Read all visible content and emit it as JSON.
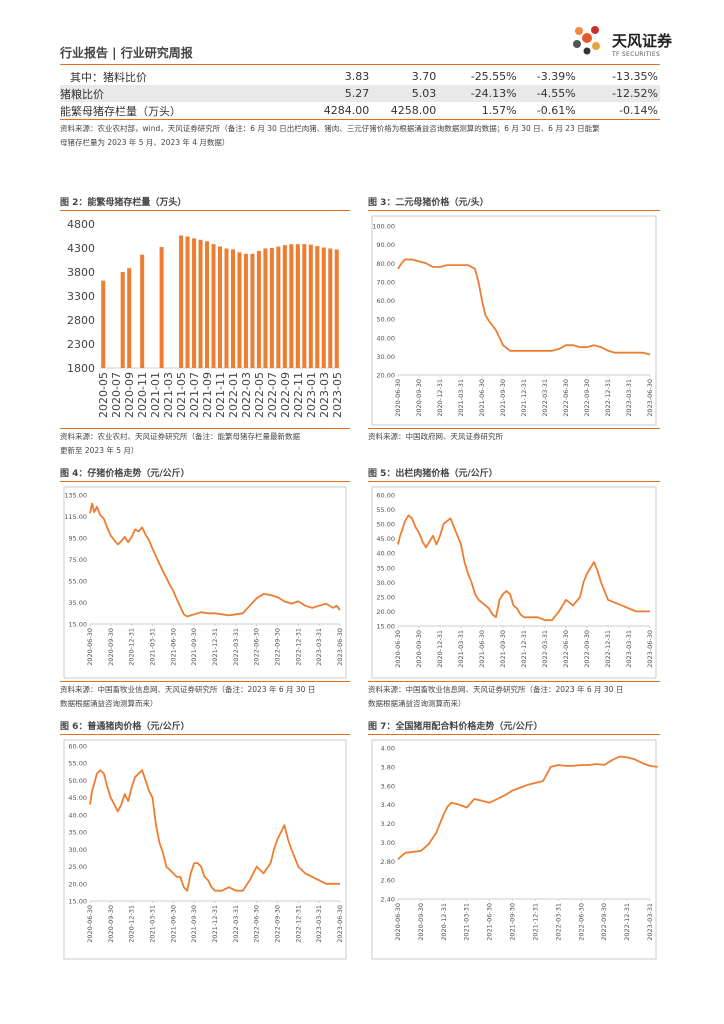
{
  "header": {
    "title": "行业报告 | 行业研究周报",
    "logo_cn": "天风证券",
    "logo_en": "TF SECURITIES"
  },
  "table": {
    "rows": [
      {
        "label": "其中：猪料比价",
        "v1": "3.83",
        "v2": "3.70",
        "v3": "-25.55%",
        "v4": "-3.39%",
        "v5": "-13.35%"
      },
      {
        "label": "猪粮比价",
        "v1": "5.27",
        "v2": "5.03",
        "v3": "-24.13%",
        "v4": "-4.55%",
        "v5": "-12.52%"
      },
      {
        "label": "能繁母猪存栏量（万头）",
        "v1": "4284.00",
        "v2": "4258.00",
        "v3": "1.57%",
        "v4": "-0.61%",
        "v5": "-0.14%"
      }
    ],
    "source_line1": "资料来源：农业农村部，wind，天风证券研究所（备注：6 月 30 日出栏肉猪、猪肉、三元仔猪价格为根据涌益咨询数据测算的数据；6 月 30 日、6 月 23 日能繁",
    "source_line2": "母猪存栏量为 2023 年 5 月、2023 年 4 月数据）"
  },
  "figures": {
    "fig2": {
      "title": "图 2：能繁母猪存栏量（万头）",
      "source1": "资料来源：农业农村、天风证券研究所（备注：能繁母猪存栏量最新数据",
      "source2": "更新至 2023 年 5 月）"
    },
    "fig3": {
      "title": "图 3：二元母猪价格（元/头）",
      "source1": "资料来源：中国政府网、天风证券研究所"
    },
    "fig4": {
      "title": "图 4：仔猪价格走势（元/公斤）",
      "source1": "资料来源：中国畜牧业信息网、天风证券研究所（备注：2023 年 6 月 30 日",
      "source2": "数据根据涌益咨询测算而来）"
    },
    "fig5": {
      "title": "图 5：出栏肉猪价格（元/公斤）",
      "source1": "资料来源：中国畜牧业信息网、天风证券研究所（备注：2023 年 6 月 30 日",
      "source2": "数据根据涌益咨询测算而来）"
    },
    "fig6": {
      "title": "图 6：普通猪肉价格（元/公斤）"
    },
    "fig7": {
      "title": "图 7：全国猪用配合料价格走势（元/公斤）"
    }
  },
  "colors": {
    "accent": "#e07020",
    "series": "#ed7d31"
  },
  "chart_data": [
    {
      "id": "fig2",
      "type": "bar",
      "title": "能繁母猪存栏量（万头）",
      "ylim": [
        1800,
        4800
      ],
      "yticks": [
        1800,
        2300,
        2800,
        3300,
        3800,
        4300,
        4800
      ],
      "xticks": [
        "2020-05",
        "2020-07",
        "2020-09",
        "2020-11",
        "2021-01",
        "2021-03",
        "2021-05",
        "2021-07",
        "2021-09",
        "2021-11",
        "2022-01",
        "2022-03",
        "2022-05",
        "2022-07",
        "2022-09",
        "2022-11",
        "2023-01",
        "2023-03",
        "2023-05"
      ],
      "categories": [
        "2020-05",
        "2020-06",
        "2020-07",
        "2020-08",
        "2020-09",
        "2020-10",
        "2020-11",
        "2020-12",
        "2021-01",
        "2021-02",
        "2021-03",
        "2021-04",
        "2021-05",
        "2021-06",
        "2021-07",
        "2021-08",
        "2021-09",
        "2021-10",
        "2021-11",
        "2021-12",
        "2022-01",
        "2022-02",
        "2022-03",
        "2022-04",
        "2022-05",
        "2022-06",
        "2022-07",
        "2022-08",
        "2022-09",
        "2022-10",
        "2022-11",
        "2022-12",
        "2023-01",
        "2023-02",
        "2023-03",
        "2023-04",
        "2023-05"
      ],
      "values": [
        3620,
        null,
        null,
        3800,
        3880,
        null,
        4160,
        null,
        null,
        4320,
        null,
        null,
        4560,
        4540,
        4500,
        4470,
        4440,
        4380,
        4330,
        4290,
        4270,
        4210,
        4180,
        4180,
        4240,
        4290,
        4300,
        4330,
        4360,
        4380,
        4380,
        4380,
        4370,
        4340,
        4310,
        4290,
        4270
      ]
    },
    {
      "id": "fig3",
      "type": "line",
      "title": "二元母猪价格（元/头）",
      "ylim": [
        20,
        100
      ],
      "yticks": [
        20,
        30,
        40,
        50,
        60,
        70,
        80,
        90,
        100
      ],
      "ytick_labels": [
        "20.00",
        "30.00",
        "40.00",
        "50.00",
        "60.00",
        "70.00",
        "80.00",
        "90.00",
        "100.00"
      ],
      "xlim": [
        0,
        36
      ],
      "xticks": [
        {
          "x": 0,
          "label": "2020-06-30"
        },
        {
          "x": 3,
          "label": "2020-09-30"
        },
        {
          "x": 6,
          "label": "2020-12-31"
        },
        {
          "x": 9,
          "label": "2021-03-31"
        },
        {
          "x": 12,
          "label": "2021-06-30"
        },
        {
          "x": 15,
          "label": "2021-09-30"
        },
        {
          "x": 18,
          "label": "2021-12-31"
        },
        {
          "x": 21,
          "label": "2022-03-31"
        },
        {
          "x": 24,
          "label": "2022-06-30"
        },
        {
          "x": 27,
          "label": "2022-09-30"
        },
        {
          "x": 30,
          "label": "2022-12-31"
        },
        {
          "x": 33,
          "label": "2023-03-31"
        },
        {
          "x": 36,
          "label": "2023-06-30"
        }
      ],
      "x": [
        0,
        0.5,
        1,
        2,
        3,
        4,
        5,
        6,
        7,
        8,
        9,
        10,
        11,
        11.5,
        12,
        12.5,
        13,
        14,
        15,
        16,
        17,
        18,
        19,
        20,
        21,
        22,
        23,
        24,
        25,
        26,
        27,
        28,
        29,
        30,
        31,
        32,
        33,
        34,
        35,
        36
      ],
      "y": [
        77,
        80,
        82,
        82,
        81,
        80,
        78,
        78,
        79,
        79,
        79,
        79,
        77,
        70,
        60,
        52,
        49,
        44,
        36,
        33,
        33,
        33,
        33,
        33,
        33,
        33,
        34,
        36,
        36,
        35,
        35,
        36,
        35,
        33,
        32,
        32,
        32,
        32,
        32,
        31
      ]
    },
    {
      "id": "fig4",
      "type": "line",
      "title": "仔猪价格走势（元/公斤）",
      "ylim": [
        15,
        135
      ],
      "yticks": [
        15,
        35,
        55,
        75,
        95,
        115,
        135
      ],
      "ytick_labels": [
        "15.00",
        "35.00",
        "55.00",
        "75.00",
        "95.00",
        "115.00",
        "135.00"
      ],
      "xlim": [
        0,
        36
      ],
      "xticks": [
        {
          "x": 0,
          "label": "2020-06-30"
        },
        {
          "x": 3,
          "label": "2020-09-30"
        },
        {
          "x": 6,
          "label": "2020-12-31"
        },
        {
          "x": 9,
          "label": "2021-03-31"
        },
        {
          "x": 12,
          "label": "2021-06-30"
        },
        {
          "x": 15,
          "label": "2021-09-30"
        },
        {
          "x": 18,
          "label": "2021-12-31"
        },
        {
          "x": 21,
          "label": "2022-03-31"
        },
        {
          "x": 24,
          "label": "2022-06-30"
        },
        {
          "x": 27,
          "label": "2022-09-30"
        },
        {
          "x": 30,
          "label": "2022-12-31"
        },
        {
          "x": 33,
          "label": "2023-03-31"
        },
        {
          "x": 36,
          "label": "2023-06-30"
        }
      ],
      "x": [
        0,
        0.3,
        0.6,
        1,
        1.5,
        2,
        2.5,
        3,
        3.5,
        4,
        4.5,
        5,
        5.5,
        6,
        6.5,
        7,
        7.5,
        8,
        8.5,
        9,
        9.5,
        10,
        10.5,
        11,
        11.5,
        12,
        12.5,
        13,
        13.5,
        14,
        15,
        16,
        17,
        18,
        19,
        20,
        21,
        22,
        23,
        24,
        25,
        26,
        27,
        28,
        29,
        30,
        31,
        32,
        33,
        34,
        35,
        35.5,
        36
      ],
      "y": [
        118,
        127,
        119,
        124,
        116,
        113,
        104,
        97,
        93,
        89,
        92,
        96,
        91,
        96,
        103,
        101,
        105,
        98,
        93,
        85,
        78,
        71,
        64,
        58,
        51,
        46,
        38,
        31,
        24,
        22,
        24,
        26,
        25,
        25,
        24,
        23,
        24,
        25,
        32,
        39,
        43,
        42,
        40,
        36,
        34,
        36,
        32,
        30,
        32,
        34,
        30,
        32,
        28
      ]
    },
    {
      "id": "fig5",
      "type": "line",
      "title": "出栏肉猪价格（元/公斤）",
      "ylim": [
        15,
        60
      ],
      "yticks": [
        15,
        20,
        25,
        30,
        35,
        40,
        45,
        50,
        55,
        60
      ],
      "ytick_labels": [
        "15.00",
        "20.00",
        "25.00",
        "30.00",
        "35.00",
        "40.00",
        "45.00",
        "50.00",
        "55.00",
        "60.00"
      ],
      "xlim": [
        0,
        36
      ],
      "xticks": [
        {
          "x": 0,
          "label": "2020-06-30"
        },
        {
          "x": 3,
          "label": "2020-09-30"
        },
        {
          "x": 6,
          "label": "2020-12-31"
        },
        {
          "x": 9,
          "label": "2021-03-31"
        },
        {
          "x": 12,
          "label": "2021-06-30"
        },
        {
          "x": 15,
          "label": "2021-09-30"
        },
        {
          "x": 18,
          "label": "2021-12-31"
        },
        {
          "x": 21,
          "label": "2022-03-31"
        },
        {
          "x": 24,
          "label": "2022-06-30"
        },
        {
          "x": 27,
          "label": "2022-09-30"
        },
        {
          "x": 30,
          "label": "2022-12-31"
        },
        {
          "x": 33,
          "label": "2023-03-31"
        },
        {
          "x": 36,
          "label": "2023-06-30"
        }
      ],
      "x": [
        0,
        0.3,
        0.6,
        1,
        1.5,
        2,
        2.5,
        3,
        3.5,
        4,
        4.5,
        5,
        5.5,
        6,
        6.5,
        7,
        7.5,
        8,
        8.5,
        9,
        9.5,
        10,
        10.5,
        11,
        11.5,
        12,
        12.5,
        13,
        13.5,
        14,
        14.5,
        15,
        15.5,
        16,
        16.5,
        17,
        17.5,
        18,
        19,
        20,
        21,
        22,
        23,
        24,
        25,
        26,
        26.5,
        27,
        27.5,
        28,
        28.5,
        29,
        30,
        31,
        32,
        33,
        34,
        35,
        36
      ],
      "y": [
        43,
        46,
        48,
        51,
        53,
        52,
        49,
        47,
        44,
        42,
        44,
        46,
        43,
        46,
        50,
        51,
        52,
        49,
        46,
        43,
        37,
        33,
        30,
        26,
        24,
        23,
        22,
        21,
        19,
        18,
        24,
        26,
        27,
        26,
        22,
        21,
        19,
        18,
        18,
        18,
        17,
        17,
        20,
        24,
        22,
        25,
        30,
        33,
        35,
        37,
        34,
        30,
        24,
        23,
        22,
        21,
        20,
        20,
        20
      ]
    },
    {
      "id": "fig6",
      "type": "line",
      "title": "普通猪肉价格（元/公斤）",
      "ylim": [
        15,
        60
      ],
      "yticks": [
        15,
        20,
        25,
        30,
        35,
        40,
        45,
        50,
        55,
        60
      ],
      "ytick_labels": [
        "15.00",
        "20.00",
        "25.00",
        "30.00",
        "35.00",
        "40.00",
        "45.00",
        "50.00",
        "55.00",
        "60.00"
      ],
      "xlim": [
        0,
        36
      ],
      "xticks": [
        {
          "x": 0,
          "label": "2020-06-30"
        },
        {
          "x": 3,
          "label": "2020-09-30"
        },
        {
          "x": 6,
          "label": "2020-12-31"
        },
        {
          "x": 9,
          "label": "2021-03-31"
        },
        {
          "x": 12,
          "label": "2021-06-30"
        },
        {
          "x": 15,
          "label": "2021-09-30"
        },
        {
          "x": 18,
          "label": "2021-12-31"
        },
        {
          "x": 21,
          "label": "2022-03-31"
        },
        {
          "x": 24,
          "label": "2022-06-30"
        },
        {
          "x": 27,
          "label": "2022-09-30"
        },
        {
          "x": 30,
          "label": "2022-12-31"
        },
        {
          "x": 33,
          "label": "2023-03-31"
        },
        {
          "x": 36,
          "label": "2023-06-30"
        }
      ],
      "x": [
        0,
        0.3,
        0.6,
        1,
        1.5,
        2,
        2.5,
        3,
        3.5,
        4,
        4.5,
        5,
        5.5,
        6,
        6.5,
        7,
        7.5,
        8,
        8.5,
        9,
        9.5,
        10,
        10.5,
        11,
        11.5,
        12,
        12.5,
        13,
        13.5,
        14,
        14.5,
        15,
        15.5,
        16,
        16.5,
        17,
        17.5,
        18,
        19,
        20,
        21,
        22,
        23,
        24,
        25,
        26,
        26.5,
        27,
        27.5,
        28,
        28.5,
        29,
        30,
        31,
        32,
        33,
        34,
        35,
        36
      ],
      "y": [
        43,
        47,
        49,
        52,
        53,
        52,
        48,
        45,
        43,
        41,
        43,
        46,
        44,
        48,
        51,
        52,
        53,
        50,
        47,
        45,
        37,
        32,
        29,
        25,
        24,
        23,
        22,
        22,
        19,
        18,
        23,
        26,
        26,
        25,
        22,
        21,
        19,
        18,
        18,
        19,
        18,
        18,
        21,
        25,
        23,
        26,
        30,
        33,
        35,
        37,
        33,
        30,
        25,
        23,
        22,
        21,
        20,
        20,
        20
      ]
    },
    {
      "id": "fig7",
      "type": "line",
      "title": "全国猪用配合料价格走势（元/公斤）",
      "ylim": [
        2.4,
        4.0
      ],
      "yticks": [
        2.4,
        2.6,
        2.8,
        3.0,
        3.2,
        3.4,
        3.6,
        3.8,
        4.0
      ],
      "ytick_labels": [
        "2.40",
        "2.60",
        "2.80",
        "3.00",
        "3.20",
        "3.40",
        "3.60",
        "3.80",
        "4.00"
      ],
      "xlim": [
        0,
        33
      ],
      "xticks": [
        {
          "x": 0,
          "label": "2020-06-30"
        },
        {
          "x": 3,
          "label": "2020-09-30"
        },
        {
          "x": 6,
          "label": "2020-12-31"
        },
        {
          "x": 9,
          "label": "2021-03-31"
        },
        {
          "x": 12,
          "label": "2021-06-30"
        },
        {
          "x": 15,
          "label": "2021-09-30"
        },
        {
          "x": 18,
          "label": "2021-12-31"
        },
        {
          "x": 21,
          "label": "2022-03-31"
        },
        {
          "x": 24,
          "label": "2022-06-30"
        },
        {
          "x": 27,
          "label": "2022-09-30"
        },
        {
          "x": 30,
          "label": "2022-12-31"
        },
        {
          "x": 33,
          "label": "2023-03-31"
        }
      ],
      "x": [
        0,
        0.5,
        1,
        2,
        3,
        4,
        5,
        6,
        6.5,
        7,
        8,
        9,
        10,
        11,
        12,
        13,
        14,
        15,
        16,
        17,
        18,
        19,
        20,
        21,
        22,
        23,
        24,
        25,
        26,
        27,
        28,
        29,
        30,
        31,
        32,
        33,
        34
      ],
      "y": [
        2.82,
        2.86,
        2.89,
        2.9,
        2.91,
        2.98,
        3.1,
        3.3,
        3.38,
        3.42,
        3.4,
        3.37,
        3.46,
        3.44,
        3.42,
        3.46,
        3.5,
        3.55,
        3.58,
        3.61,
        3.63,
        3.65,
        3.8,
        3.82,
        3.81,
        3.81,
        3.82,
        3.82,
        3.83,
        3.82,
        3.87,
        3.91,
        3.9,
        3.88,
        3.84,
        3.81,
        3.8
      ]
    }
  ]
}
